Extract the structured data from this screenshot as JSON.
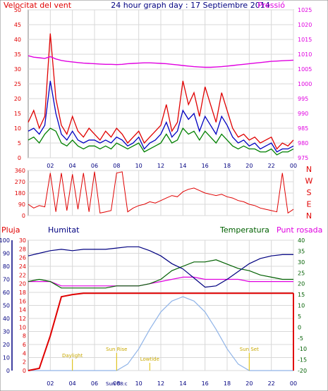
{
  "header": {
    "left_label": "Velocitat del vent",
    "title": "24 hour graph day : 17 Septiembre 2014",
    "right_label": "Pressió"
  },
  "colors": {
    "wind": "#e00000",
    "gust": "#e00000",
    "wind_avg": "#0000c0",
    "wind_dir_series": "#008000",
    "pressure": "#e000e0",
    "title": "#000080",
    "rain": "#e00000",
    "humidity": "#000080",
    "temperature": "#006000",
    "dewpoint": "#e000e0",
    "solar": "#90b4e8",
    "annotation": "#e0c000",
    "grid": "#d8d8d8"
  },
  "bottom_labels": {
    "rain": "Pluja",
    "humidity": "Humitat",
    "temperature": "Temperatura",
    "dewpoint": "Punt rosada"
  },
  "direction_labels": [
    "N",
    "W",
    "S",
    "E",
    "N"
  ],
  "annotations": [
    {
      "text": "Daylight",
      "hour": 4
    },
    {
      "text": "Sun Rise",
      "hour": 8
    },
    {
      "text": "Sun 08:c",
      "hour": 8
    },
    {
      "text": "Lowtide",
      "hour": 11
    },
    {
      "text": "Sun Set",
      "hour": 20
    }
  ],
  "chart_data": [
    {
      "type": "line",
      "name": "wind",
      "x_ticks": [
        "02",
        "04",
        "06",
        "08",
        "10",
        "12",
        "14",
        "16",
        "18",
        "20",
        "22",
        "00"
      ],
      "hours": [
        0,
        0.5,
        1,
        1.5,
        2,
        2.5,
        3,
        3.5,
        4,
        4.5,
        5,
        5.5,
        6,
        6.5,
        7,
        7.5,
        8,
        8.5,
        9,
        9.5,
        10,
        10.5,
        11,
        11.5,
        12,
        12.5,
        13,
        13.5,
        14,
        14.5,
        15,
        15.5,
        16,
        16.5,
        17,
        17.5,
        18,
        18.5,
        19,
        19.5,
        20,
        20.5,
        21,
        21.5,
        22,
        22.5,
        23,
        23.5,
        24
      ],
      "y_left_ticks": [
        0,
        5,
        10,
        15,
        20,
        25,
        30,
        35,
        40,
        45,
        50
      ],
      "y_right_ticks": [
        975,
        980,
        985,
        990,
        995,
        1000,
        1005,
        1010,
        1015,
        1020,
        1025
      ],
      "ylim_left": [
        0,
        50
      ],
      "ylim_right": [
        975,
        1025
      ],
      "series": [
        {
          "name": "gust",
          "axis": "left",
          "values": [
            12,
            16,
            10,
            14,
            42,
            20,
            11,
            8,
            14,
            9,
            7,
            10,
            8,
            6,
            9,
            7,
            10,
            8,
            5,
            7,
            9,
            5,
            7,
            9,
            11,
            18,
            9,
            12,
            26,
            18,
            22,
            14,
            24,
            18,
            12,
            22,
            16,
            10,
            7,
            8,
            6,
            7,
            5,
            6,
            7,
            3,
            5,
            4,
            6
          ]
        },
        {
          "name": "wind_avg",
          "axis": "left",
          "values": [
            9,
            10,
            8,
            11,
            26,
            15,
            8,
            6,
            9,
            6,
            5,
            6,
            6,
            5,
            6,
            5,
            7,
            6,
            4,
            5,
            7,
            3,
            5,
            6,
            8,
            12,
            7,
            9,
            16,
            13,
            15,
            9,
            14,
            11,
            8,
            14,
            11,
            7,
            5,
            6,
            4,
            5,
            3,
            4,
            5,
            2,
            3,
            3,
            4
          ]
        },
        {
          "name": "wind_dir_series",
          "axis": "left",
          "values": [
            6,
            7,
            5,
            8,
            10,
            9,
            5,
            4,
            6,
            4,
            3,
            4,
            4,
            3,
            4,
            3,
            5,
            4,
            3,
            4,
            5,
            2,
            3,
            4,
            5,
            8,
            5,
            6,
            10,
            8,
            9,
            6,
            9,
            7,
            5,
            8,
            6,
            4,
            3,
            4,
            3,
            3,
            2,
            2,
            3,
            1,
            2,
            2,
            3
          ]
        },
        {
          "name": "pressure",
          "axis": "right",
          "values": [
            1009.5,
            1009,
            1008.8,
            1008.6,
            1009.2,
            1008.4,
            1007.9,
            1007.6,
            1007.4,
            1007.2,
            1007.0,
            1006.9,
            1006.8,
            1006.7,
            1006.6,
            1006.6,
            1006.5,
            1006.6,
            1006.8,
            1006.9,
            1007.0,
            1007.1,
            1007.1,
            1007.0,
            1006.9,
            1006.8,
            1006.6,
            1006.4,
            1006.2,
            1006.0,
            1005.8,
            1005.7,
            1005.6,
            1005.6,
            1005.7,
            1005.8,
            1006.0,
            1006.2,
            1006.4,
            1006.6,
            1006.8,
            1007.0,
            1007.2,
            1007.4,
            1007.6,
            1007.7,
            1007.8,
            1007.9,
            1008.0
          ]
        }
      ]
    },
    {
      "type": "line",
      "name": "wind_direction",
      "x_ticks": [
        "02",
        "04",
        "06",
        "08",
        "10",
        "12",
        "14",
        "16",
        "18",
        "20",
        "22",
        "00"
      ],
      "y_ticks": [
        0,
        90,
        180,
        270,
        360
      ],
      "ylim": [
        0,
        360
      ],
      "hours": [
        0,
        0.5,
        1,
        1.5,
        2,
        2.5,
        3,
        3.5,
        4,
        4.5,
        5,
        5.5,
        6,
        6.5,
        7,
        7.5,
        8,
        8.5,
        9,
        9.5,
        10,
        10.5,
        11,
        11.5,
        12,
        12.5,
        13,
        13.5,
        14,
        14.5,
        15,
        15.5,
        16,
        16.5,
        17,
        17.5,
        18,
        18.5,
        19,
        19.5,
        20,
        20.5,
        21,
        21.5,
        22,
        22.5,
        23,
        23.5,
        24
      ],
      "series": [
        {
          "name": "direction",
          "values": [
            90,
            60,
            80,
            70,
            340,
            30,
            340,
            40,
            330,
            50,
            340,
            30,
            350,
            20,
            30,
            40,
            340,
            350,
            30,
            60,
            80,
            90,
            110,
            100,
            120,
            140,
            160,
            150,
            190,
            210,
            220,
            200,
            180,
            170,
            160,
            170,
            150,
            140,
            120,
            110,
            90,
            80,
            60,
            50,
            40,
            30,
            340,
            20,
            50
          ]
        }
      ]
    },
    {
      "type": "line",
      "name": "temperature_humidity",
      "x_ticks": [
        "02",
        "04",
        "06",
        "08",
        "10",
        "12",
        "14",
        "16",
        "18",
        "20",
        "22",
        "00"
      ],
      "y_left_humidity_ticks": [
        0,
        10,
        20,
        30,
        40,
        50,
        60,
        70,
        80,
        90,
        100
      ],
      "y_left_rain_ticks": [
        0,
        2,
        4,
        6,
        8,
        10,
        12,
        14,
        16,
        18,
        20,
        22,
        24,
        26,
        28,
        30
      ],
      "y_right_ticks": [
        -20,
        -15,
        -10,
        -5,
        0,
        5,
        10,
        15,
        20,
        25,
        30,
        35,
        40
      ],
      "hours": [
        0,
        1,
        2,
        3,
        4,
        5,
        6,
        7,
        8,
        9,
        10,
        11,
        12,
        13,
        14,
        15,
        16,
        17,
        18,
        19,
        20,
        21,
        22,
        23,
        24
      ],
      "series": [
        {
          "name": "rain",
          "axis": "rain",
          "values": [
            0,
            0.5,
            8,
            17,
            17.5,
            17.8,
            17.8,
            17.8,
            17.8,
            17.8,
            17.8,
            17.8,
            17.8,
            17.8,
            17.8,
            17.8,
            17.8,
            17.8,
            17.8,
            17.8,
            17.8,
            17.8,
            17.8,
            17.8,
            17.8
          ]
        },
        {
          "name": "humidity",
          "axis": "humidity",
          "values": [
            88,
            90,
            92,
            93,
            92,
            93,
            93,
            93,
            94,
            95,
            95,
            92,
            88,
            82,
            78,
            71,
            64,
            65,
            70,
            76,
            82,
            86,
            88,
            89,
            89
          ]
        },
        {
          "name": "temperature",
          "axis": "temperature",
          "values": [
            21,
            22,
            21,
            18,
            18,
            18,
            18,
            18,
            19,
            19,
            19,
            20,
            22,
            26,
            28,
            30,
            30,
            31,
            29,
            27,
            26,
            24,
            23,
            22,
            22
          ]
        },
        {
          "name": "dewpoint",
          "axis": "temperature",
          "values": [
            21,
            21,
            21,
            19,
            19,
            19,
            19,
            19,
            19,
            19,
            19,
            20,
            21,
            22,
            23,
            23,
            22,
            22,
            22,
            22,
            21,
            21,
            21,
            21,
            21
          ]
        },
        {
          "name": "solar",
          "axis": "temperature",
          "values": [
            -20,
            -20,
            -20,
            -20,
            -20,
            -20,
            -20,
            -20,
            -20,
            -17,
            -10,
            -1,
            7,
            12,
            14,
            12,
            7,
            -1,
            -10,
            -17,
            -20,
            -20,
            -20,
            -20,
            -20
          ]
        }
      ]
    }
  ]
}
